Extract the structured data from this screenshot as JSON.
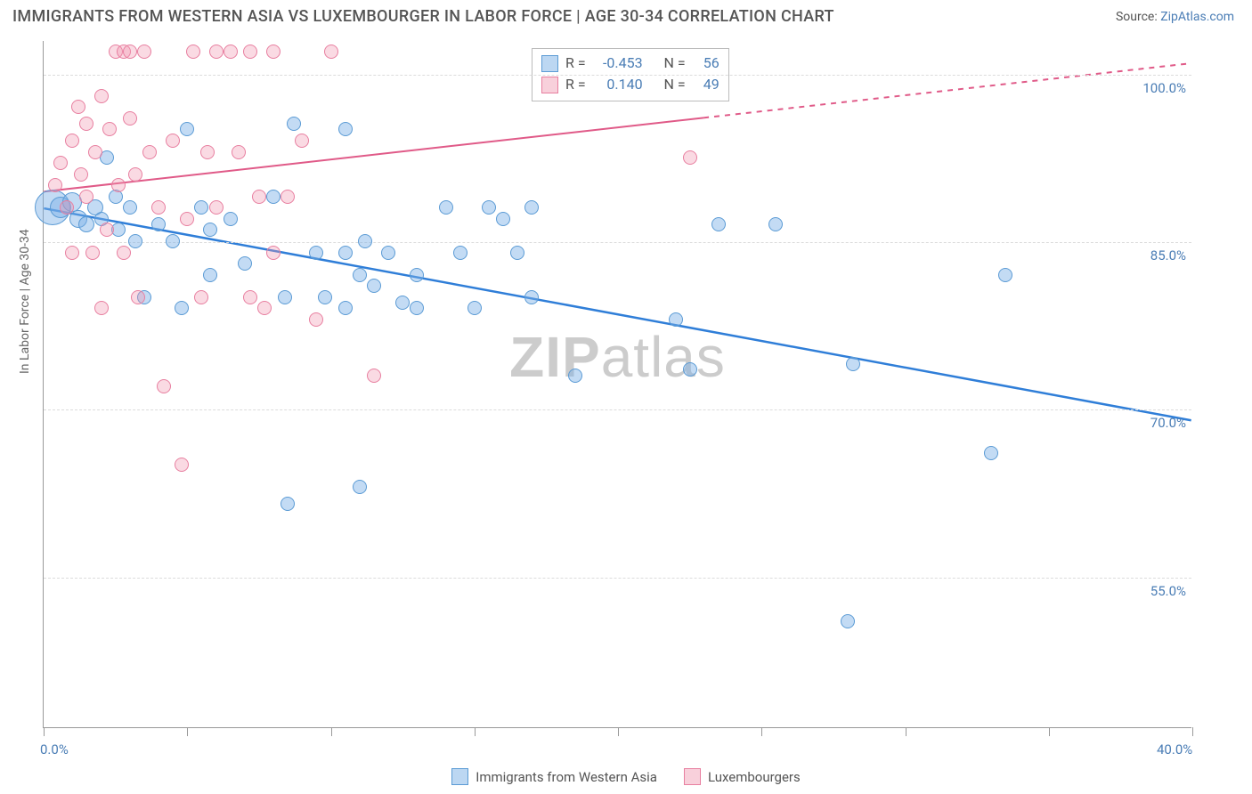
{
  "title": "IMMIGRANTS FROM WESTERN ASIA VS LUXEMBOURGER IN LABOR FORCE | AGE 30-34 CORRELATION CHART",
  "source_prefix": "Source: ",
  "source_name": "ZipAtlas.com",
  "y_axis_label": "In Labor Force | Age 30-34",
  "watermark": {
    "bold": "ZIP",
    "rest": "atlas"
  },
  "chart": {
    "type": "scatter",
    "background_color": "#ffffff",
    "grid_color": "#dcdcdc",
    "axis_color": "#999999",
    "xlim": [
      0,
      40
    ],
    "ylim": [
      41.5,
      103
    ],
    "ytick_values": [
      55,
      70,
      85,
      100
    ],
    "ytick_labels": [
      "55.0%",
      "70.0%",
      "85.0%",
      "100.0%"
    ],
    "xtick_values": [
      0,
      5,
      10,
      15,
      20,
      25,
      30,
      35,
      40
    ],
    "xtick_shown_labels": {
      "0": "0.0%",
      "40": "40.0%"
    },
    "series": [
      {
        "id": "blue",
        "label": "Immigrants from Western Asia",
        "fill": "rgba(122,176,230,0.45)",
        "stroke": "#5b9bd5",
        "R": "-0.453",
        "N": "56",
        "trend": {
          "x1": 0,
          "y1": 88.0,
          "x2": 40,
          "y2": 69.0,
          "solid_until_x": 40,
          "stroke": "#2f7ed8",
          "width": 2.5
        },
        "points": [
          {
            "x": 0.3,
            "y": 88,
            "r": 20
          },
          {
            "x": 0.6,
            "y": 88,
            "r": 12
          },
          {
            "x": 1.0,
            "y": 88.5,
            "r": 11
          },
          {
            "x": 1.2,
            "y": 87,
            "r": 10
          },
          {
            "x": 1.5,
            "y": 86.5,
            "r": 9
          },
          {
            "x": 1.8,
            "y": 88,
            "r": 9
          },
          {
            "x": 2.0,
            "y": 87,
            "r": 8
          },
          {
            "x": 2.2,
            "y": 92.5,
            "r": 8
          },
          {
            "x": 2.5,
            "y": 89,
            "r": 8
          },
          {
            "x": 2.6,
            "y": 86,
            "r": 8
          },
          {
            "x": 3.0,
            "y": 88,
            "r": 8
          },
          {
            "x": 3.2,
            "y": 85,
            "r": 8
          },
          {
            "x": 3.5,
            "y": 80,
            "r": 8
          },
          {
            "x": 4.0,
            "y": 86.5,
            "r": 8
          },
          {
            "x": 4.5,
            "y": 85,
            "r": 8
          },
          {
            "x": 4.8,
            "y": 79,
            "r": 8
          },
          {
            "x": 5.0,
            "y": 95,
            "r": 8
          },
          {
            "x": 5.5,
            "y": 88,
            "r": 8
          },
          {
            "x": 5.8,
            "y": 82,
            "r": 8
          },
          {
            "x": 5.8,
            "y": 86,
            "r": 8
          },
          {
            "x": 6.5,
            "y": 87,
            "r": 8
          },
          {
            "x": 7.0,
            "y": 83,
            "r": 8
          },
          {
            "x": 8.0,
            "y": 89,
            "r": 8
          },
          {
            "x": 8.4,
            "y": 80,
            "r": 8
          },
          {
            "x": 8.5,
            "y": 61.5,
            "r": 8
          },
          {
            "x": 8.7,
            "y": 95.5,
            "r": 8
          },
          {
            "x": 9.5,
            "y": 84,
            "r": 8
          },
          {
            "x": 9.8,
            "y": 80,
            "r": 8
          },
          {
            "x": 10.5,
            "y": 95,
            "r": 8
          },
          {
            "x": 10.5,
            "y": 84,
            "r": 8
          },
          {
            "x": 10.5,
            "y": 79,
            "r": 8
          },
          {
            "x": 11.0,
            "y": 82,
            "r": 8
          },
          {
            "x": 11.0,
            "y": 63,
            "r": 8
          },
          {
            "x": 11.2,
            "y": 85,
            "r": 8
          },
          {
            "x": 11.5,
            "y": 81,
            "r": 8
          },
          {
            "x": 12.0,
            "y": 84,
            "r": 8
          },
          {
            "x": 12.5,
            "y": 79.5,
            "r": 8
          },
          {
            "x": 13.0,
            "y": 82,
            "r": 8
          },
          {
            "x": 13.0,
            "y": 79,
            "r": 8
          },
          {
            "x": 14.0,
            "y": 88,
            "r": 8
          },
          {
            "x": 14.5,
            "y": 84,
            "r": 8
          },
          {
            "x": 15.0,
            "y": 79,
            "r": 8
          },
          {
            "x": 15.5,
            "y": 88,
            "r": 8
          },
          {
            "x": 16.0,
            "y": 87,
            "r": 8
          },
          {
            "x": 16.5,
            "y": 84,
            "r": 8
          },
          {
            "x": 17.0,
            "y": 88,
            "r": 8
          },
          {
            "x": 17.0,
            "y": 80,
            "r": 8
          },
          {
            "x": 18.5,
            "y": 73,
            "r": 8
          },
          {
            "x": 22.0,
            "y": 78,
            "r": 8
          },
          {
            "x": 22.5,
            "y": 73.5,
            "r": 8
          },
          {
            "x": 23.5,
            "y": 86.5,
            "r": 8
          },
          {
            "x": 25.5,
            "y": 86.5,
            "r": 8
          },
          {
            "x": 28.0,
            "y": 51,
            "r": 8
          },
          {
            "x": 28.2,
            "y": 74,
            "r": 8
          },
          {
            "x": 33.0,
            "y": 66,
            "r": 8
          },
          {
            "x": 33.5,
            "y": 82,
            "r": 8
          }
        ]
      },
      {
        "id": "pink",
        "label": "Luxembourgers",
        "fill": "rgba(240,150,175,0.35)",
        "stroke": "#e87fa0",
        "R": "0.140",
        "N": "49",
        "trend": {
          "x1": 0,
          "y1": 89.5,
          "x2": 40,
          "y2": 101.0,
          "solid_until_x": 23,
          "stroke": "#e05a88",
          "width": 2
        },
        "points": [
          {
            "x": 0.4,
            "y": 90,
            "r": 8
          },
          {
            "x": 0.6,
            "y": 92,
            "r": 8
          },
          {
            "x": 0.8,
            "y": 88,
            "r": 8
          },
          {
            "x": 1.0,
            "y": 94,
            "r": 8
          },
          {
            "x": 1.0,
            "y": 84,
            "r": 8
          },
          {
            "x": 1.2,
            "y": 97,
            "r": 8
          },
          {
            "x": 1.3,
            "y": 91,
            "r": 8
          },
          {
            "x": 1.5,
            "y": 89,
            "r": 8
          },
          {
            "x": 1.5,
            "y": 95.5,
            "r": 8
          },
          {
            "x": 1.7,
            "y": 84,
            "r": 8
          },
          {
            "x": 1.8,
            "y": 93,
            "r": 8
          },
          {
            "x": 2.0,
            "y": 79,
            "r": 8
          },
          {
            "x": 2.0,
            "y": 98,
            "r": 8
          },
          {
            "x": 2.2,
            "y": 86,
            "r": 8
          },
          {
            "x": 2.3,
            "y": 95,
            "r": 8
          },
          {
            "x": 2.5,
            "y": 102,
            "r": 8
          },
          {
            "x": 2.6,
            "y": 90,
            "r": 8
          },
          {
            "x": 2.8,
            "y": 102,
            "r": 8
          },
          {
            "x": 2.8,
            "y": 84,
            "r": 8
          },
          {
            "x": 3.0,
            "y": 102,
            "r": 8
          },
          {
            "x": 3.0,
            "y": 96,
            "r": 8
          },
          {
            "x": 3.2,
            "y": 91,
            "r": 8
          },
          {
            "x": 3.3,
            "y": 80,
            "r": 8
          },
          {
            "x": 3.5,
            "y": 102,
            "r": 8
          },
          {
            "x": 3.7,
            "y": 93,
            "r": 8
          },
          {
            "x": 4.0,
            "y": 88,
            "r": 8
          },
          {
            "x": 4.2,
            "y": 72,
            "r": 8
          },
          {
            "x": 4.5,
            "y": 94,
            "r": 8
          },
          {
            "x": 4.8,
            "y": 65,
            "r": 8
          },
          {
            "x": 5.0,
            "y": 87,
            "r": 8
          },
          {
            "x": 5.2,
            "y": 102,
            "r": 8
          },
          {
            "x": 5.5,
            "y": 80,
            "r": 8
          },
          {
            "x": 5.7,
            "y": 93,
            "r": 8
          },
          {
            "x": 6.0,
            "y": 88,
            "r": 8
          },
          {
            "x": 6.0,
            "y": 102,
            "r": 8
          },
          {
            "x": 6.5,
            "y": 102,
            "r": 8
          },
          {
            "x": 6.8,
            "y": 93,
            "r": 8
          },
          {
            "x": 7.2,
            "y": 102,
            "r": 8
          },
          {
            "x": 7.2,
            "y": 80,
            "r": 8
          },
          {
            "x": 7.5,
            "y": 89,
            "r": 8
          },
          {
            "x": 7.7,
            "y": 79,
            "r": 8
          },
          {
            "x": 8.0,
            "y": 102,
            "r": 8
          },
          {
            "x": 8.0,
            "y": 84,
            "r": 8
          },
          {
            "x": 8.5,
            "y": 89,
            "r": 8
          },
          {
            "x": 9.0,
            "y": 94,
            "r": 8
          },
          {
            "x": 9.5,
            "y": 78,
            "r": 8
          },
          {
            "x": 10.0,
            "y": 102,
            "r": 8
          },
          {
            "x": 11.5,
            "y": 73,
            "r": 8
          },
          {
            "x": 22.5,
            "y": 92.5,
            "r": 8
          }
        ]
      }
    ]
  },
  "stats_box": {
    "r_label": "R =",
    "n_label": "N ="
  }
}
